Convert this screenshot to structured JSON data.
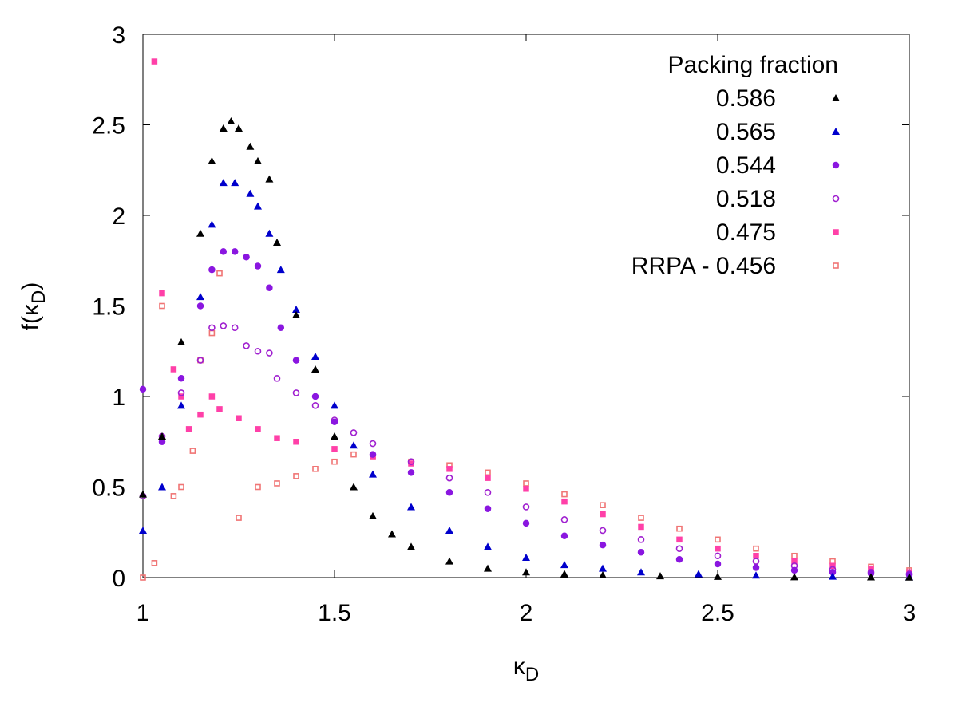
{
  "chart_data": {
    "type": "scatter",
    "title": "",
    "xlabel": "κ",
    "xlabel_sub": "D",
    "ylabel_prefix": "f(κ",
    "ylabel_sub": "D",
    "ylabel_suffix": ")",
    "xlim": [
      1,
      3
    ],
    "ylim": [
      0,
      3
    ],
    "x_ticks": [
      1,
      1.5,
      2,
      2.5,
      3
    ],
    "x_tick_labels": [
      "1",
      "1.5",
      "2",
      "2.5",
      "3"
    ],
    "y_ticks": [
      0,
      0.5,
      1,
      1.5,
      2,
      2.5,
      3
    ],
    "y_tick_labels": [
      "0",
      "0.5",
      "1",
      "1.5",
      "2",
      "2.5",
      "3"
    ],
    "grid": false,
    "legend": {
      "title": "Packing fraction",
      "position": "top-right"
    },
    "series": [
      {
        "name": "0.586",
        "marker": "triangle-filled",
        "color": "#000000",
        "x": [
          1.0,
          1.05,
          1.1,
          1.15,
          1.18,
          1.21,
          1.23,
          1.25,
          1.28,
          1.3,
          1.33,
          1.35,
          1.4,
          1.45,
          1.5,
          1.55,
          1.6,
          1.65,
          1.7,
          1.8,
          1.9,
          2.0,
          2.1,
          2.2,
          2.35,
          2.5,
          2.7,
          2.9,
          3.0
        ],
        "y": [
          0.46,
          0.78,
          1.3,
          1.9,
          2.3,
          2.48,
          2.52,
          2.48,
          2.38,
          2.3,
          2.2,
          1.85,
          1.45,
          1.15,
          0.78,
          0.5,
          0.34,
          0.24,
          0.17,
          0.09,
          0.05,
          0.03,
          0.02,
          0.013,
          0.008,
          0.005,
          0.003,
          0.002,
          0.001
        ]
      },
      {
        "name": "0.565",
        "marker": "triangle-filled",
        "color": "#0000cc",
        "x": [
          1.0,
          1.05,
          1.1,
          1.15,
          1.18,
          1.21,
          1.24,
          1.28,
          1.3,
          1.33,
          1.36,
          1.4,
          1.45,
          1.5,
          1.55,
          1.6,
          1.7,
          1.8,
          1.9,
          2.0,
          2.1,
          2.2,
          2.3,
          2.45,
          2.6,
          2.8,
          3.0
        ],
        "y": [
          0.26,
          0.5,
          0.95,
          1.55,
          1.95,
          2.18,
          2.18,
          2.12,
          2.05,
          1.9,
          1.7,
          1.48,
          1.22,
          0.95,
          0.73,
          0.57,
          0.39,
          0.26,
          0.17,
          0.11,
          0.07,
          0.05,
          0.03,
          0.02,
          0.012,
          0.006,
          0.003
        ]
      },
      {
        "name": "0.544",
        "marker": "circle-filled",
        "color": "#8a16e0",
        "x": [
          1.0,
          1.05,
          1.1,
          1.15,
          1.18,
          1.21,
          1.24,
          1.27,
          1.3,
          1.33,
          1.36,
          1.4,
          1.45,
          1.5,
          1.6,
          1.7,
          1.8,
          1.9,
          2.0,
          2.1,
          2.2,
          2.3,
          2.4,
          2.5,
          2.6,
          2.7,
          2.8,
          2.9,
          3.0
        ],
        "y": [
          1.04,
          0.75,
          1.1,
          1.5,
          1.7,
          1.8,
          1.8,
          1.77,
          1.72,
          1.6,
          1.38,
          1.2,
          1.0,
          0.86,
          0.68,
          0.58,
          0.47,
          0.38,
          0.3,
          0.23,
          0.18,
          0.14,
          0.1,
          0.075,
          0.055,
          0.04,
          0.03,
          0.022,
          0.015
        ]
      },
      {
        "name": "0.518",
        "marker": "circle-open",
        "color": "#a020d0",
        "x": [
          1.0,
          1.05,
          1.1,
          1.15,
          1.18,
          1.21,
          1.24,
          1.27,
          1.3,
          1.33,
          1.35,
          1.4,
          1.45,
          1.5,
          1.55,
          1.6,
          1.7,
          1.8,
          1.9,
          2.0,
          2.1,
          2.2,
          2.3,
          2.4,
          2.5,
          2.6,
          2.7,
          2.8,
          2.9,
          3.0
        ],
        "y": [
          0.45,
          0.78,
          1.02,
          1.2,
          1.38,
          1.39,
          1.38,
          1.28,
          1.25,
          1.24,
          1.1,
          1.02,
          0.95,
          0.87,
          0.8,
          0.74,
          0.64,
          0.55,
          0.47,
          0.39,
          0.32,
          0.26,
          0.21,
          0.16,
          0.12,
          0.09,
          0.065,
          0.045,
          0.03,
          0.02
        ]
      },
      {
        "name": "0.475",
        "marker": "square-filled",
        "color": "#ff40a8",
        "x": [
          1.03,
          1.05,
          1.08,
          1.1,
          1.12,
          1.15,
          1.18,
          1.2,
          1.25,
          1.3,
          1.35,
          1.4,
          1.5,
          1.6,
          1.7,
          1.8,
          1.9,
          2.0,
          2.1,
          2.2,
          2.3,
          2.4,
          2.5,
          2.6,
          2.7,
          2.8,
          2.9,
          3.0
        ],
        "y": [
          2.85,
          1.57,
          1.15,
          1.0,
          0.82,
          0.9,
          1.0,
          0.93,
          0.88,
          0.82,
          0.77,
          0.75,
          0.71,
          0.67,
          0.63,
          0.6,
          0.55,
          0.49,
          0.42,
          0.35,
          0.28,
          0.21,
          0.16,
          0.12,
          0.09,
          0.065,
          0.045,
          0.03
        ]
      },
      {
        "name": "RRPA - 0.456",
        "marker": "square-open",
        "color": "#f07575",
        "x": [
          1.0,
          1.03,
          1.05,
          1.08,
          1.1,
          1.13,
          1.15,
          1.18,
          1.2,
          1.25,
          1.3,
          1.35,
          1.4,
          1.45,
          1.5,
          1.55,
          1.6,
          1.7,
          1.8,
          1.9,
          2.0,
          2.1,
          2.2,
          2.3,
          2.4,
          2.5,
          2.6,
          2.7,
          2.8,
          2.9,
          3.0
        ],
        "y": [
          0.0,
          0.08,
          1.5,
          0.45,
          0.5,
          0.7,
          1.2,
          1.35,
          1.68,
          0.33,
          0.5,
          0.52,
          0.56,
          0.6,
          0.64,
          0.68,
          0.67,
          0.64,
          0.62,
          0.58,
          0.52,
          0.46,
          0.4,
          0.33,
          0.27,
          0.21,
          0.16,
          0.12,
          0.09,
          0.06,
          0.04
        ]
      }
    ]
  }
}
